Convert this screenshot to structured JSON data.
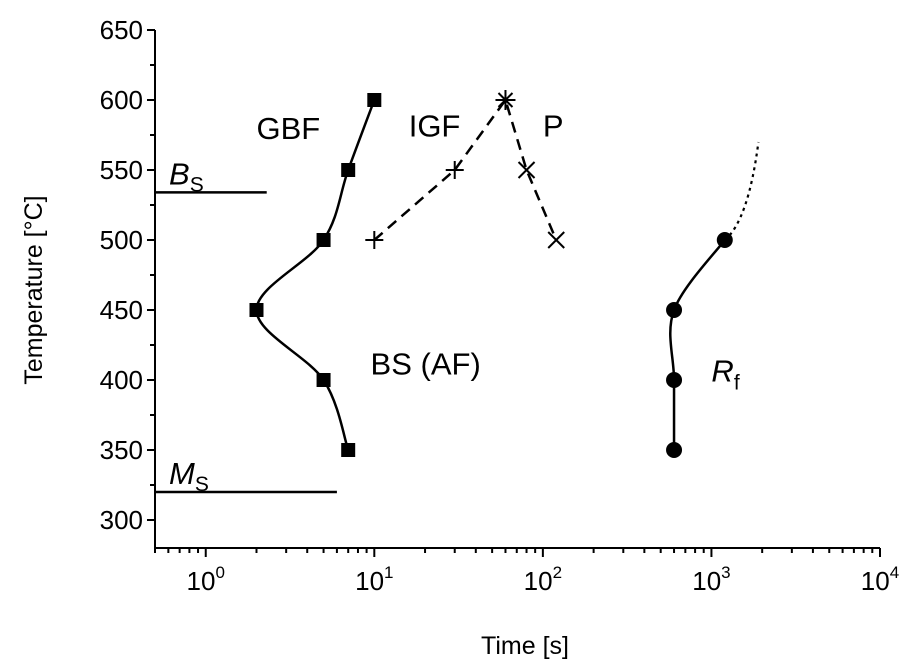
{
  "chart_data": {
    "type": "scatter",
    "xlabel": "Time [s]",
    "ylabel": "Temperature [°C]",
    "xscale": "log",
    "xlim": [
      0.5,
      10000
    ],
    "ylim": [
      280,
      650
    ],
    "grid": false,
    "x_tick_labels": [
      {
        "base": "10",
        "exp": "0"
      },
      {
        "base": "10",
        "exp": "1"
      },
      {
        "base": "10",
        "exp": "2"
      },
      {
        "base": "10",
        "exp": "3"
      },
      {
        "base": "10",
        "exp": "4"
      }
    ],
    "y_ticks": [
      "300",
      "350",
      "400",
      "450",
      "500",
      "550",
      "600",
      "650"
    ],
    "series": [
      {
        "marker": "square",
        "line": "solid",
        "points": [
          {
            "x": 10,
            "y": 600
          },
          {
            "x": 7,
            "y": 550
          },
          {
            "x": 5,
            "y": 500
          },
          {
            "x": 2,
            "y": 450
          },
          {
            "x": 5,
            "y": 400
          },
          {
            "x": 7,
            "y": 350
          }
        ]
      },
      {
        "marker": "plus",
        "line": "dashed",
        "points": [
          {
            "x": 10,
            "y": 500
          },
          {
            "x": 30,
            "y": 550
          }
        ]
      },
      {
        "marker": "star",
        "line": "dashed",
        "points": [
          {
            "x": 60,
            "y": 600
          }
        ]
      },
      {
        "marker": "cross",
        "line": "dashed",
        "points": [
          {
            "x": 80,
            "y": 550
          },
          {
            "x": 120,
            "y": 500
          }
        ]
      },
      {
        "marker": "circle",
        "line": "solid",
        "points": [
          {
            "x": 1200,
            "y": 500
          },
          {
            "x": 600,
            "y": 450
          },
          {
            "x": 600,
            "y": 400
          },
          {
            "x": 600,
            "y": 350
          }
        ],
        "extension": {
          "line": "dotted",
          "from": {
            "x": 1200,
            "y": 500
          },
          "to": {
            "x": 1900,
            "y": 570
          }
        }
      }
    ],
    "reference_lines": [
      {
        "label": "B",
        "subscript": "S",
        "y": 534,
        "x_from": 0.5,
        "x_to": 2.3
      },
      {
        "label": "M",
        "subscript": "S",
        "y": 320,
        "x_from": 0.5,
        "x_to": 6
      }
    ],
    "annotations": [
      {
        "text": "GBF",
        "x": 2.0,
        "y": 572
      },
      {
        "text": "IGF",
        "x": 16,
        "y": 574
      },
      {
        "text": "P",
        "x": 100,
        "y": 574
      },
      {
        "text": "BS (AF)",
        "x": 9.5,
        "y": 404
      },
      {
        "text": "R",
        "subscript": "f",
        "x": 1000,
        "y": 399,
        "italic": true
      }
    ]
  }
}
